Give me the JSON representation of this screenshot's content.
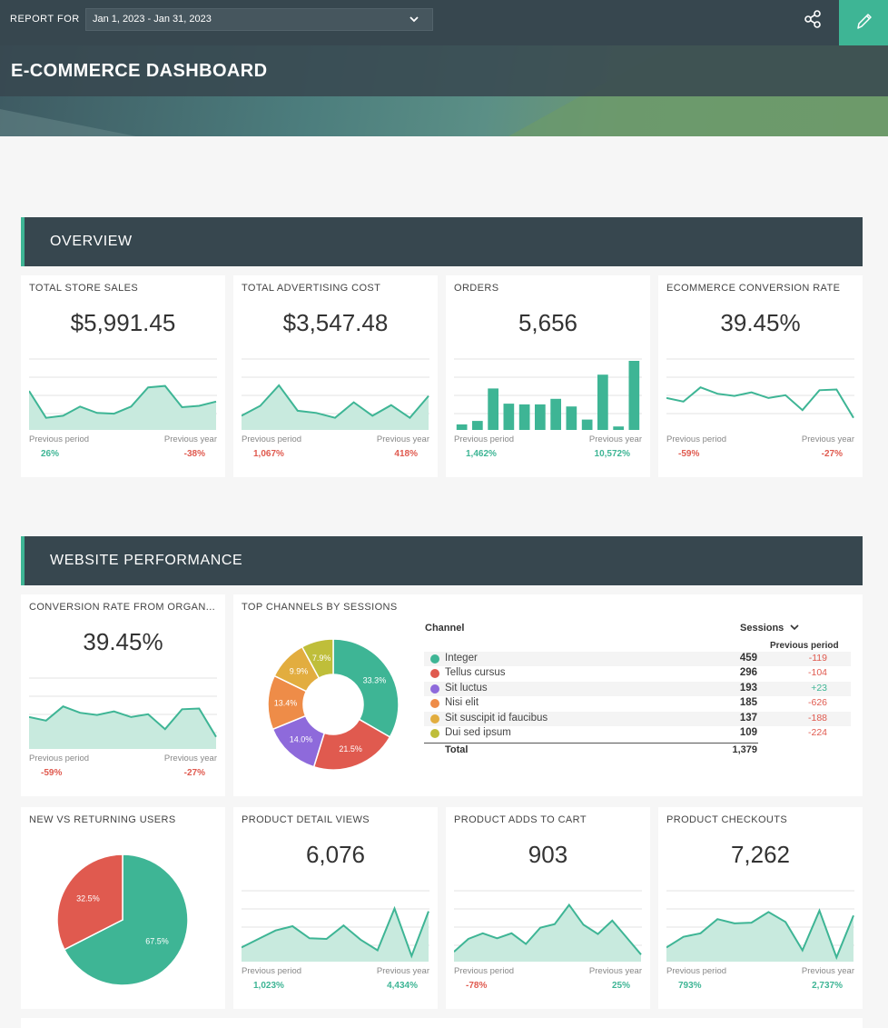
{
  "header": {
    "report_for": "REPORT FOR",
    "date_range": "Jan 1, 2023 - Jan 31, 2023",
    "title": "E-COMMERCE DASHBOARD"
  },
  "colors": {
    "accent": "#3eb595",
    "negative": "#e05a4f",
    "header_bg": "#37474f"
  },
  "sections": {
    "overview": "OVERVIEW",
    "website": "WEBSITE PERFORMANCE"
  },
  "labels": {
    "previous_period": "Previous period",
    "previous_year": "Previous year"
  },
  "kpis": {
    "total_store_sales": {
      "title": "TOTAL STORE SALES",
      "value": "$5,991.45",
      "prev_period": "26%",
      "prev_year": "-38%",
      "series": [
        55,
        17,
        20,
        33,
        24,
        23,
        33,
        60,
        62,
        32,
        34,
        40
      ]
    },
    "total_ad_cost": {
      "title": "TOTAL ADVERTISING COST",
      "value": "$3,547.48",
      "prev_period": "1,067%",
      "prev_year": "418%",
      "series": [
        20,
        34,
        63,
        27,
        24,
        17,
        39,
        20,
        35,
        17,
        48
      ]
    },
    "orders": {
      "title": "ORDERS",
      "value": "5,656",
      "prev_period": "1,462%",
      "prev_year": "10,572%",
      "bars": [
        8,
        13,
        60,
        38,
        37,
        37,
        45,
        34,
        15,
        80,
        5,
        100
      ]
    },
    "ecommerce_conversion": {
      "title": "ECOMMERCE CONVERSION RATE",
      "value": "39.45%",
      "prev_period": "-59%",
      "prev_year": "-27%",
      "series": [
        45,
        40,
        60,
        51,
        48,
        53,
        45,
        49,
        28,
        56,
        57,
        17
      ]
    },
    "conversion_organic": {
      "title": "CONVERSION RATE FROM ORGAN...",
      "value": "39.45%",
      "prev_period": "-59%",
      "prev_year": "-27%",
      "series": [
        45,
        40,
        60,
        51,
        48,
        53,
        45,
        49,
        28,
        56,
        57,
        17
      ]
    },
    "product_detail_views": {
      "title": "PRODUCT DETAIL VIEWS",
      "value": "6,076",
      "prev_period": "1,023%",
      "prev_year": "4,434%",
      "series": [
        20,
        32,
        44,
        50,
        33,
        32,
        51,
        31,
        16,
        75,
        8,
        71
      ]
    },
    "product_adds_to_cart": {
      "title": "PRODUCT ADDS TO CART",
      "value": "903",
      "prev_period": "-78%",
      "prev_year": "25%",
      "series": [
        14,
        32,
        40,
        33,
        40,
        25,
        48,
        53,
        80,
        52,
        39,
        58,
        34,
        10
      ]
    },
    "product_checkouts": {
      "title": "PRODUCT CHECKOUTS",
      "value": "7,262",
      "prev_period": "793%",
      "prev_year": "2,737%",
      "series": [
        20,
        35,
        40,
        60,
        54,
        55,
        70,
        56,
        16,
        72,
        6,
        65
      ]
    }
  },
  "channels": {
    "title": "TOP CHANNELS BY SESSIONS",
    "col_channel": "Channel",
    "col_sessions": "Sessions",
    "col_prev": "Previous period",
    "total_label": "Total",
    "total_value": "1,379",
    "rows": [
      {
        "name": "Integer",
        "value": "459",
        "prev": "-119",
        "color": "#3eb595"
      },
      {
        "name": "Tellus cursus",
        "value": "296",
        "prev": "-104",
        "color": "#e05a4f"
      },
      {
        "name": "Sit luctus",
        "value": "193",
        "prev": "+23",
        "color": "#8e6adb"
      },
      {
        "name": "Nisi elit",
        "value": "185",
        "prev": "-626",
        "color": "#ee8c48"
      },
      {
        "name": "Sit suscipit id faucibus",
        "value": "137",
        "prev": "-188",
        "color": "#e2ad3f"
      },
      {
        "name": "Dui sed ipsum",
        "value": "109",
        "prev": "-224",
        "color": "#bfbe3a"
      }
    ]
  },
  "chart_data": [
    {
      "type": "pie",
      "title": "TOP CHANNELS BY SESSIONS",
      "categories": [
        "Integer",
        "Tellus cursus",
        "Sit luctus",
        "Nisi elit",
        "Sit suscipit id faucibus",
        "Dui sed ipsum"
      ],
      "values": [
        33.3,
        21.5,
        14.0,
        13.4,
        9.9,
        7.9
      ],
      "labels": [
        "33.3%",
        "21.5%",
        "14.0%",
        "13.4%",
        "9.9%",
        "7.9%"
      ],
      "colors": [
        "#3eb595",
        "#e05a4f",
        "#8e6adb",
        "#ee8c48",
        "#e2ad3f",
        "#bfbe3a"
      ]
    },
    {
      "type": "pie",
      "title": "NEW VS RETURNING USERS",
      "values": [
        67.5,
        32.5
      ],
      "labels": [
        "67.5%",
        "32.5%"
      ],
      "colors": [
        "#3eb595",
        "#e05a4f"
      ]
    }
  ],
  "new_vs_returning": {
    "title": "NEW VS RETURNING USERS"
  }
}
